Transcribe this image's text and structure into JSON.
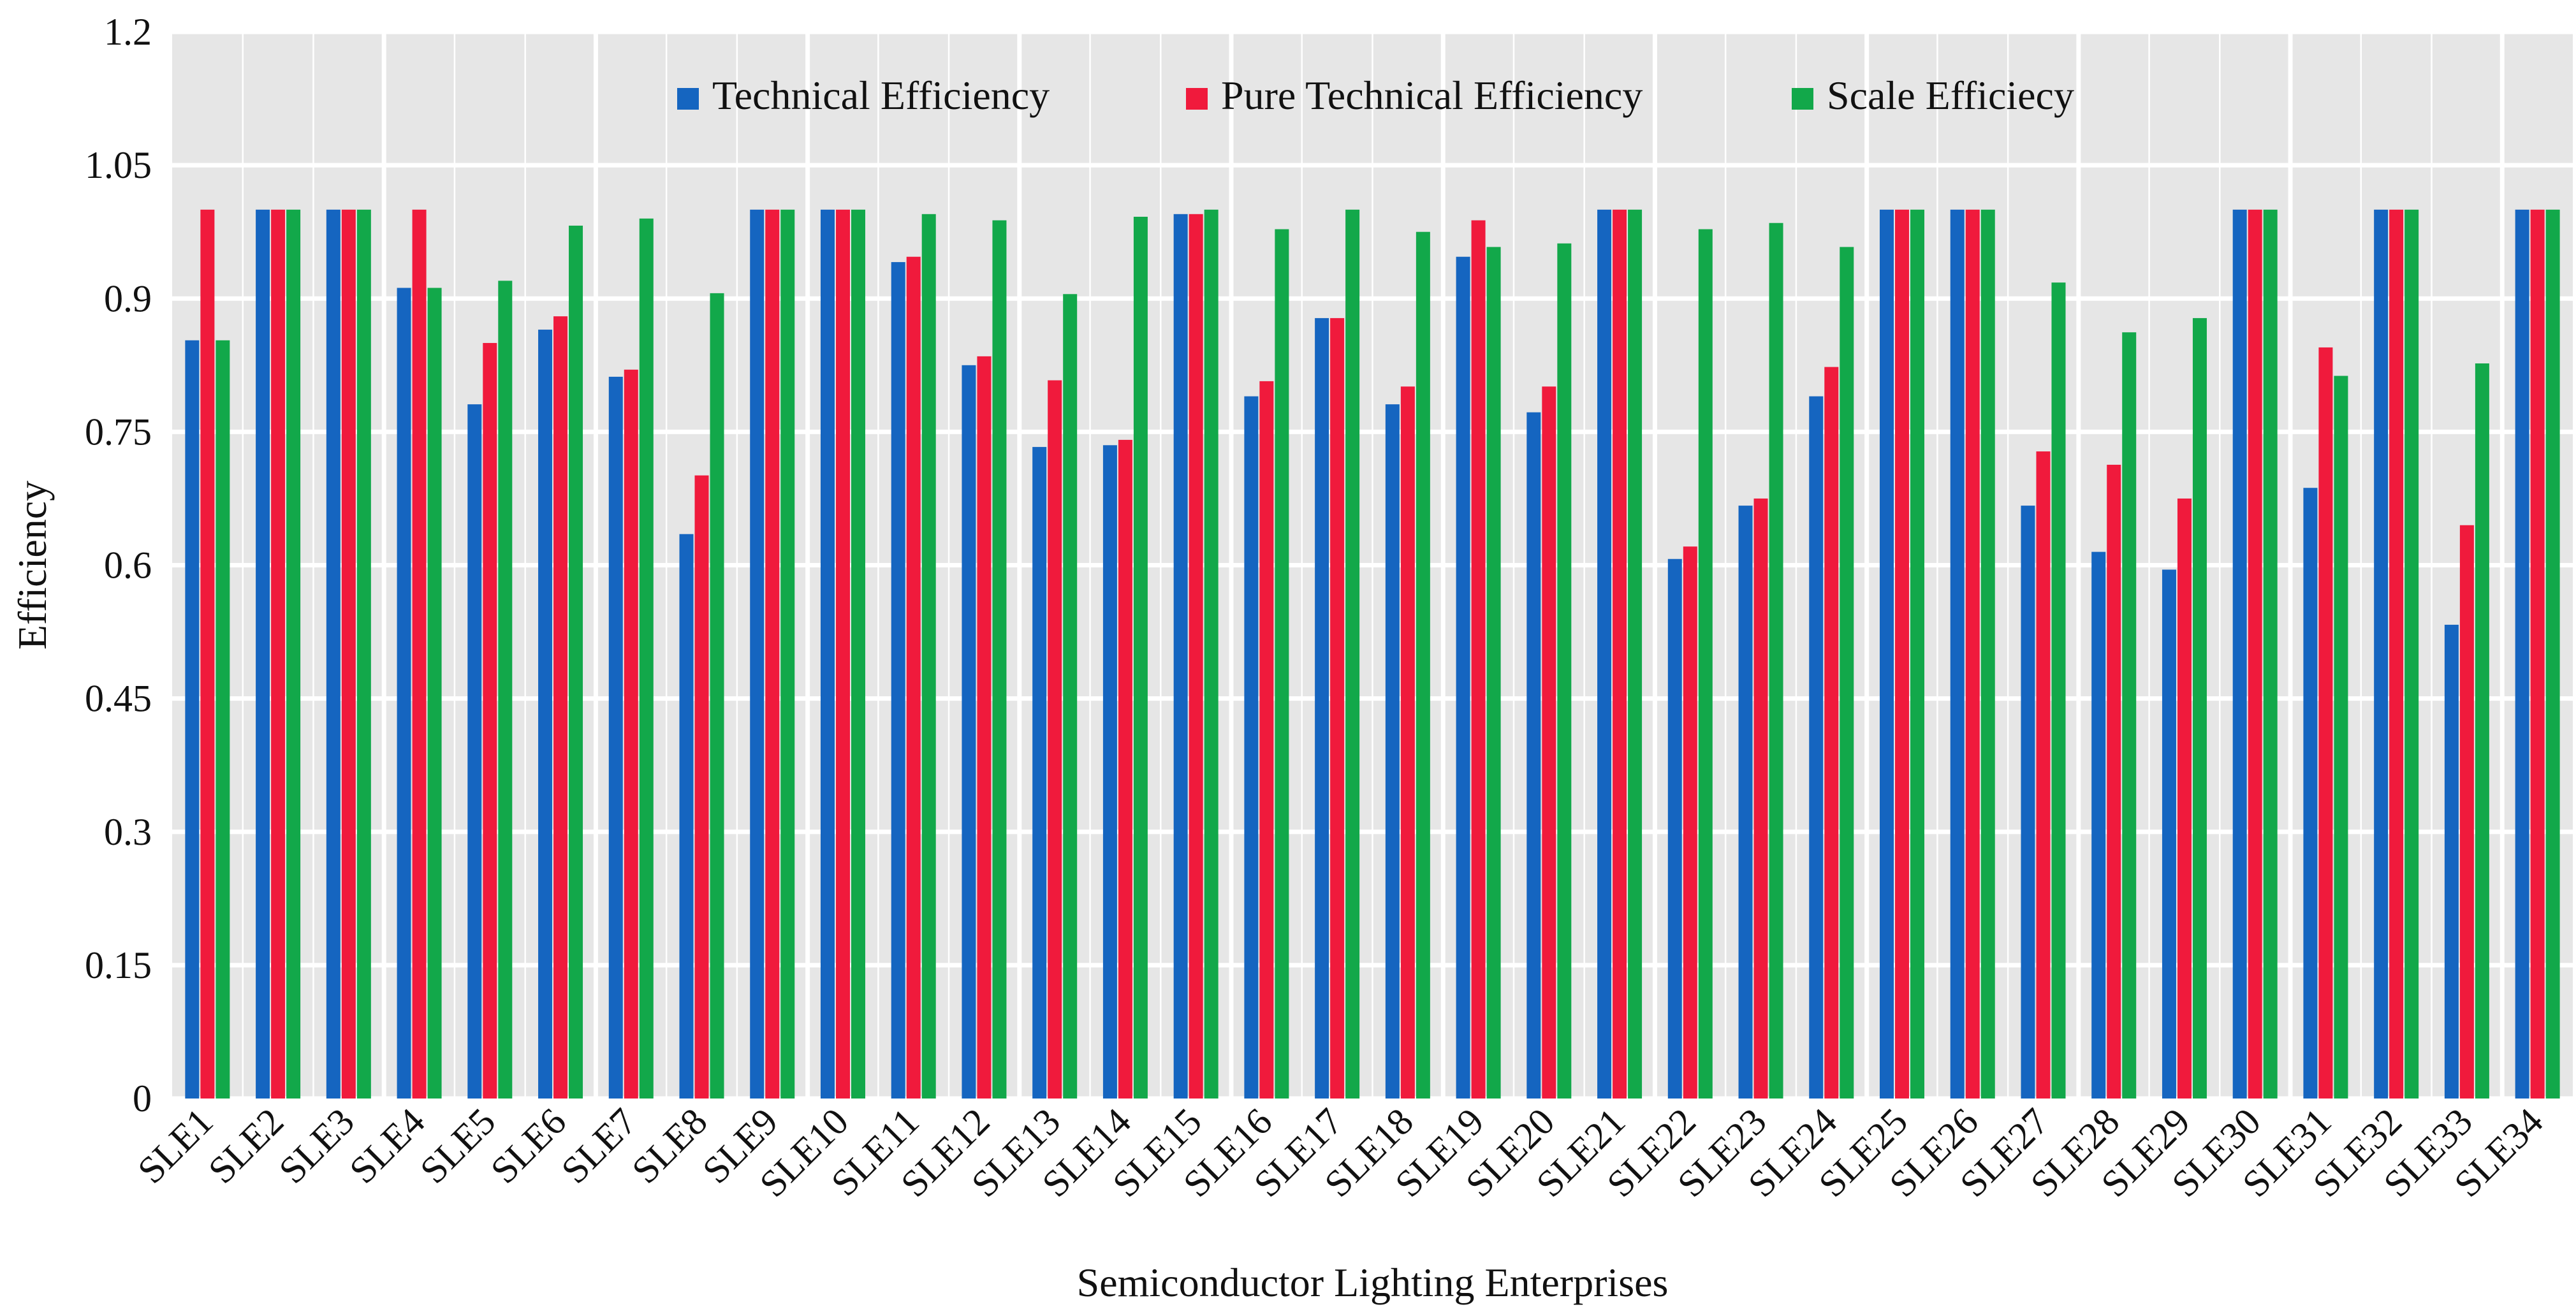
{
  "chart_data": {
    "type": "bar",
    "title": "",
    "xlabel": "Semiconductor Lighting Enterprises",
    "ylabel": "Efficiency",
    "ylim": [
      0,
      1.2
    ],
    "yticks": [
      "0",
      "0.15",
      "0.3",
      "0.45",
      "0.6",
      "0.75",
      "0.9",
      "1.05",
      "1.2"
    ],
    "grid": true,
    "legend_position": "top-center",
    "categories": [
      "SLE1",
      "SLE2",
      "SLE3",
      "SLE4",
      "SLE5",
      "SLE6",
      "SLE7",
      "SLE8",
      "SLE9",
      "SLE10",
      "SLE11",
      "SLE12",
      "SLE13",
      "SLE14",
      "SLE15",
      "SLE16",
      "SLE17",
      "SLE18",
      "SLE19",
      "SLE20",
      "SLE21",
      "SLE22",
      "SLE23",
      "SLE24",
      "SLE25",
      "SLE26",
      "SLE27",
      "SLE28",
      "SLE29",
      "SLE30",
      "SLE31",
      "SLE32",
      "SLE33",
      "SLE34"
    ],
    "series": [
      {
        "name": "Technical Efficiency",
        "color": "#1565c0",
        "values": [
          0.853,
          1,
          1,
          0.912,
          0.781,
          0.865,
          0.812,
          0.635,
          1,
          1,
          0.941,
          0.825,
          0.733,
          0.735,
          0.995,
          0.79,
          0.878,
          0.781,
          0.947,
          0.772,
          1,
          0.607,
          0.667,
          0.79,
          1,
          1,
          0.667,
          0.615,
          0.595,
          1,
          0.687,
          1,
          0.533,
          1
        ]
      },
      {
        "name": "Pure Technical Efficiency",
        "color": "#f01a3c",
        "values": [
          1,
          1,
          1,
          1,
          0.85,
          0.88,
          0.82,
          0.701,
          1,
          1,
          0.947,
          0.835,
          0.808,
          0.741,
          0.995,
          0.807,
          0.878,
          0.801,
          0.988,
          0.801,
          1,
          0.621,
          0.675,
          0.823,
          1,
          1,
          0.728,
          0.713,
          0.675,
          1,
          0.845,
          1,
          0.645,
          1
        ]
      },
      {
        "name": "Scale Efficiecy",
        "color": "#12a84a",
        "values": [
          0.853,
          1,
          1,
          0.912,
          0.92,
          0.982,
          0.99,
          0.906,
          1,
          1,
          0.995,
          0.988,
          0.905,
          0.992,
          1,
          0.978,
          1,
          0.975,
          0.958,
          0.962,
          1,
          0.978,
          0.985,
          0.958,
          1,
          1,
          0.918,
          0.862,
          0.878,
          1,
          0.813,
          1,
          0.827,
          1
        ]
      }
    ]
  }
}
